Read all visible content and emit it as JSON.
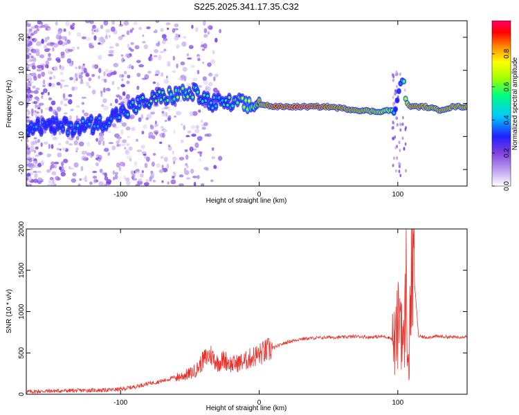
{
  "title": "S225.2025.341.17.35.C32",
  "chart_data": [
    {
      "type": "heatmap",
      "xlabel": "Height of straight line (km)",
      "ylabel": "Frequency (Hz)",
      "xlim": [
        -168,
        150
      ],
      "ylim": [
        -25,
        25
      ],
      "x_ticks": [
        -100,
        0,
        100
      ],
      "y_ticks": [
        -20,
        -10,
        0,
        10,
        20
      ],
      "colorbar": {
        "label": "Normalized spectral amplitude",
        "ticks": [
          0.0,
          0.2,
          0.4,
          0.6,
          0.8
        ],
        "range": [
          0,
          1
        ],
        "colormap": [
          "#ffffff",
          "#c8b0f0",
          "#8040e0",
          "#2020ff",
          "#00c8ff",
          "#00ff80",
          "#a0ff00",
          "#ffff00",
          "#ff8000",
          "#ff0000",
          "#ff0066"
        ]
      },
      "ridge": {
        "x": [
          -168,
          -150,
          -130,
          -115,
          -100,
          -85,
          -70,
          -55,
          -45,
          -35,
          -25,
          -15,
          -5,
          0,
          10,
          30,
          50,
          70,
          85,
          95,
          98,
          100,
          102,
          104,
          106,
          110,
          120,
          130,
          140,
          150
        ],
        "freq": [
          -7,
          -7,
          -7,
          -6,
          -3,
          0,
          2,
          3,
          3,
          0,
          0,
          0,
          -1,
          0,
          -1,
          -1,
          -1,
          -2,
          -2.5,
          -2,
          -3,
          2,
          6,
          8,
          0,
          -1,
          -1,
          -2,
          -1,
          -1
        ],
        "amplitude": [
          0.25,
          0.25,
          0.28,
          0.3,
          0.3,
          0.4,
          0.45,
          0.5,
          0.45,
          0.35,
          0.4,
          0.5,
          0.6,
          0.75,
          0.9,
          0.95,
          0.85,
          0.8,
          0.75,
          0.7,
          0.3,
          0.3,
          0.35,
          0.5,
          0.7,
          0.85,
          0.8,
          0.8,
          0.8,
          0.8
        ]
      }
    },
    {
      "type": "line",
      "xlabel": "Height of straight line (km)",
      "ylabel": "SNR (10 * v/v)",
      "xlim": [
        -168,
        150
      ],
      "ylim": [
        0,
        2000
      ],
      "x_ticks": [
        -100,
        0,
        100
      ],
      "y_ticks": [
        0,
        500,
        1000,
        1500,
        2000
      ],
      "color": "#e8302a",
      "series": [
        {
          "x": [
            -168,
            -150,
            -130,
            -110,
            -100,
            -90,
            -80,
            -70,
            -60,
            -50,
            -45,
            -40,
            -35,
            -30,
            -25,
            -20,
            -15,
            -10,
            -5,
            0,
            10,
            20,
            30,
            40,
            50,
            60,
            70,
            80,
            90,
            95,
            98,
            100,
            102,
            104,
            106,
            108,
            110,
            115,
            120,
            130,
            140,
            150
          ],
          "y": [
            20,
            30,
            35,
            40,
            50,
            80,
            120,
            150,
            200,
            250,
            300,
            420,
            480,
            380,
            420,
            360,
            380,
            400,
            450,
            480,
            560,
            630,
            670,
            680,
            690,
            690,
            700,
            690,
            700,
            680,
            600,
            800,
            1100,
            500,
            1300,
            200,
            1800,
            700,
            690,
            700,
            690,
            700
          ]
        }
      ]
    }
  ]
}
